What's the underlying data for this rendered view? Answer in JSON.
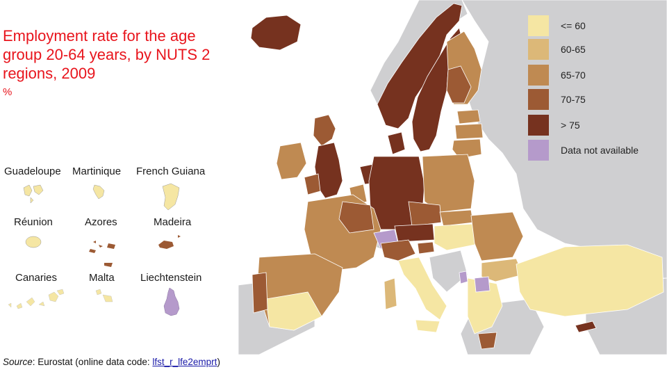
{
  "title": "Employment rate for the age group 20-64 years, by NUTS 2 regions, 2009",
  "unit": "%",
  "legend": [
    {
      "label": "<= 60",
      "color": "#f5e6a3"
    },
    {
      "label": "60-65",
      "color": "#dcb878"
    },
    {
      "label": "65-70",
      "color": "#bf8a52"
    },
    {
      "label": "70-75",
      "color": "#9c5a34"
    },
    {
      "label": "> 75",
      "color": "#76321f"
    },
    {
      "label": "Data not available",
      "color": "#b59acb"
    }
  ],
  "insets": [
    {
      "label": "Guadeloupe",
      "color": "#f5e6a3"
    },
    {
      "label": "Martinique",
      "color": "#f5e6a3"
    },
    {
      "label": "French Guiana",
      "color": "#f5e6a3"
    },
    {
      "label": "Réunion",
      "color": "#f5e6a3"
    },
    {
      "label": "Azores",
      "color": "#9c5a34"
    },
    {
      "label": "Madeira",
      "color": "#9c5a34"
    },
    {
      "label": "Canaries",
      "color": "#f5e6a3"
    },
    {
      "label": "Malta",
      "color": "#f5e6a3"
    },
    {
      "label": "Liechtenstein",
      "color": "#b59acb"
    }
  ],
  "source": {
    "prefix": "Source",
    "text": ": Eurostat (online data code: ",
    "code": "lfst_r_lfe2emprt",
    "suffix": ")"
  },
  "colors": {
    "title": "#e8141c",
    "sea": "#ffffff",
    "non_eu_land": "#cfcfd1"
  }
}
